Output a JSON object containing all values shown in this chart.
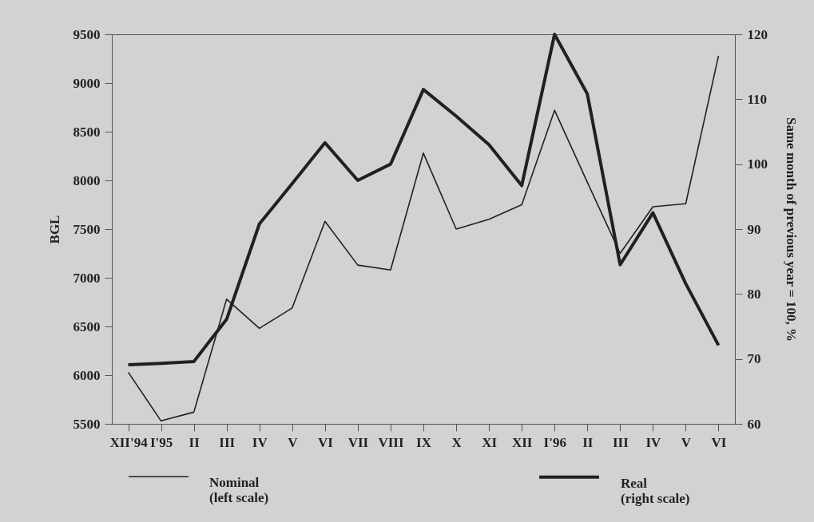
{
  "chart_data": {
    "type": "line",
    "ylabel": "BGL",
    "y2label": "Same month of previous year  = 100, %",
    "categories": [
      "XII'94",
      "I'95",
      "II",
      "III",
      "IV",
      "V",
      "VI",
      "VII",
      "VIII",
      "IX",
      "X",
      "XI",
      "XII",
      "I'96",
      "II",
      "III",
      "IV",
      "V",
      "VI"
    ],
    "series": [
      {
        "name": "Nominal (left scale)",
        "color": "#231f20",
        "values": [
          6030,
          5530,
          5620,
          6780,
          6480,
          6690,
          7580,
          7130,
          7080,
          8280,
          7500,
          7600,
          7750,
          8720,
          7980,
          7250,
          7730,
          7760,
          9280
        ]
      },
      {
        "name": "Real (right scale)",
        "color": "#231f20",
        "axis": "y2",
        "values": [
          69.1,
          69.3,
          69.6,
          76.1,
          90.8,
          97.0,
          103.3,
          97.5,
          100.0,
          111.5,
          107.4,
          103.0,
          96.7,
          120.0,
          110.8,
          84.5,
          92.5,
          81.6,
          72.1
        ]
      }
    ],
    "ylim": [
      5500,
      9500
    ],
    "yticks": [
      5500,
      6000,
      6500,
      7000,
      7500,
      8000,
      8500,
      9000,
      9500
    ],
    "y2lim": [
      60,
      120
    ],
    "y2ticks": [
      60,
      70,
      80,
      90,
      100,
      110,
      120
    ],
    "grid": false,
    "legend": "bottom",
    "marker": "none",
    "line_style": "solid"
  }
}
